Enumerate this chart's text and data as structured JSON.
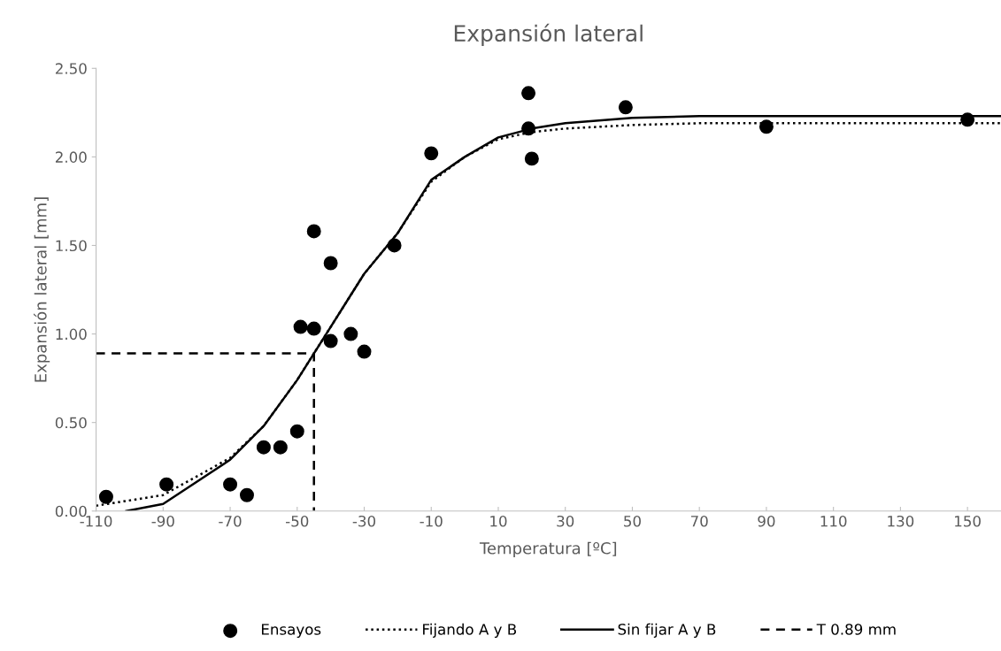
{
  "chart_data": {
    "type": "scatter",
    "title": "Expansión lateral",
    "xlabel": "Temperatura [ºC]",
    "ylabel": "Expansión lateral [mm]",
    "xlim": [
      -110,
      160
    ],
    "xticks": [
      -110,
      -90,
      -70,
      -50,
      -30,
      -10,
      10,
      30,
      50,
      70,
      90,
      110,
      130,
      150
    ],
    "ylim": [
      0,
      2.5
    ],
    "yticks": [
      {
        "value": 0,
        "label": "0.00"
      },
      {
        "value": 0.5,
        "label": "0.50"
      },
      {
        "value": 1,
        "label": "1.00"
      },
      {
        "value": 1.5,
        "label": "1.50"
      },
      {
        "value": 2,
        "label": "2.00"
      },
      {
        "value": 2.5,
        "label": "2.50"
      }
    ],
    "grid": false,
    "legend": "bottom",
    "series": [
      {
        "name": "Ensayos",
        "marker": "circle",
        "color": "#000000",
        "x": [
          -107,
          -89,
          -70,
          -65,
          -60,
          -55,
          -50,
          -49,
          -45,
          -45,
          -40,
          -40,
          -34,
          -30,
          -21,
          -10,
          19,
          19,
          20,
          48,
          90,
          150
        ],
        "values": [
          0.08,
          0.15,
          0.15,
          0.09,
          0.36,
          0.36,
          0.45,
          1.04,
          1.58,
          1.03,
          1.4,
          0.96,
          1.0,
          0.9,
          1.5,
          2.02,
          2.36,
          2.16,
          1.99,
          2.28,
          2.17,
          2.21
        ]
      },
      {
        "name": "Fijando A y B",
        "type": "line",
        "line_style": "dotted",
        "marker": "none",
        "color": "#000000",
        "x": [
          -110,
          -90,
          -70,
          -60,
          -50,
          -45,
          -40,
          -35,
          -30,
          -20,
          -10,
          0,
          10,
          20,
          30,
          50,
          70,
          100,
          160
        ],
        "values": [
          0.03,
          0.09,
          0.3,
          0.48,
          0.74,
          0.89,
          1.04,
          1.19,
          1.34,
          1.57,
          1.86,
          2.0,
          2.1,
          2.14,
          2.16,
          2.18,
          2.19,
          2.19,
          2.19
        ]
      },
      {
        "name": "Sin fijar A y B",
        "type": "line",
        "line_style": "solid",
        "marker": "none",
        "color": "#000000",
        "x": [
          -101,
          -90,
          -70,
          -60,
          -50,
          -45,
          -40,
          -35,
          -30,
          -20,
          -10,
          0,
          10,
          20,
          30,
          50,
          70,
          100,
          160
        ],
        "values": [
          0.0,
          0.04,
          0.29,
          0.48,
          0.74,
          0.89,
          1.04,
          1.19,
          1.34,
          1.57,
          1.87,
          2.0,
          2.11,
          2.16,
          2.19,
          2.22,
          2.23,
          2.23,
          2.23
        ]
      },
      {
        "name": "T 0.89 mm",
        "type": "line",
        "line_style": "dashed",
        "marker": "none",
        "color": "#000000",
        "x": [
          -110,
          -45,
          -45
        ],
        "values": [
          0.89,
          0.89,
          0
        ]
      }
    ]
  }
}
